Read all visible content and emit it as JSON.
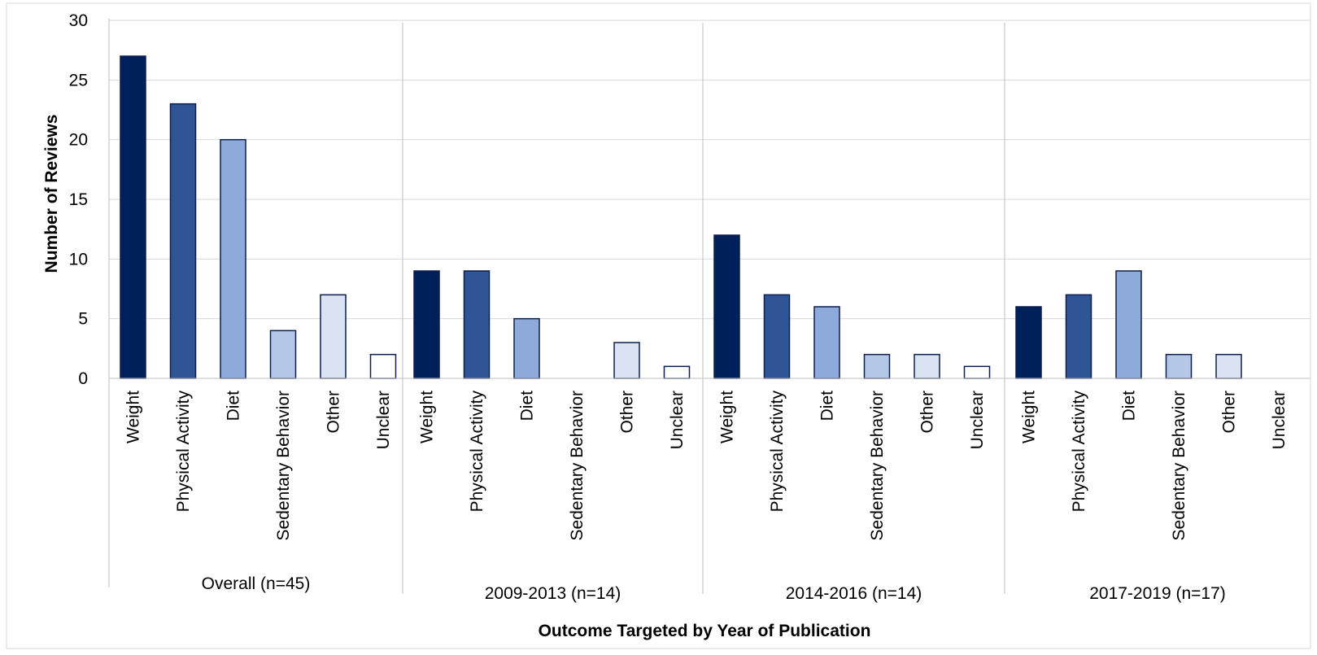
{
  "chart_data": {
    "type": "bar",
    "xlabel": "Outcome Targeted by Year of Publication",
    "ylabel": "Number of Reviews",
    "ylim": [
      0,
      30
    ],
    "yticks": [
      "0",
      "5",
      "10",
      "15",
      "20",
      "25",
      "30"
    ],
    "grid": true,
    "categories": [
      "Weight",
      "Physical Activity",
      "Diet",
      "Sedentary Behavior",
      "Other",
      "Unclear"
    ],
    "category_colors": [
      "#00205b",
      "#2f5597",
      "#8eaadb",
      "#b4c7e7",
      "#dae3f3",
      "#ffffff"
    ],
    "bar_stroke": "#0d1f4c",
    "groups": [
      {
        "label": "Overall (n=45)",
        "values": [
          27,
          23,
          20,
          4,
          7,
          2
        ]
      },
      {
        "label": "2009-2013 (n=14)",
        "values": [
          9,
          9,
          5,
          0,
          3,
          1
        ]
      },
      {
        "label": "2014-2016 (n=14)",
        "values": [
          12,
          7,
          6,
          2,
          2,
          1
        ]
      },
      {
        "label": "2017-2019 (n=17)",
        "values": [
          6,
          7,
          9,
          2,
          2,
          0
        ]
      }
    ]
  }
}
